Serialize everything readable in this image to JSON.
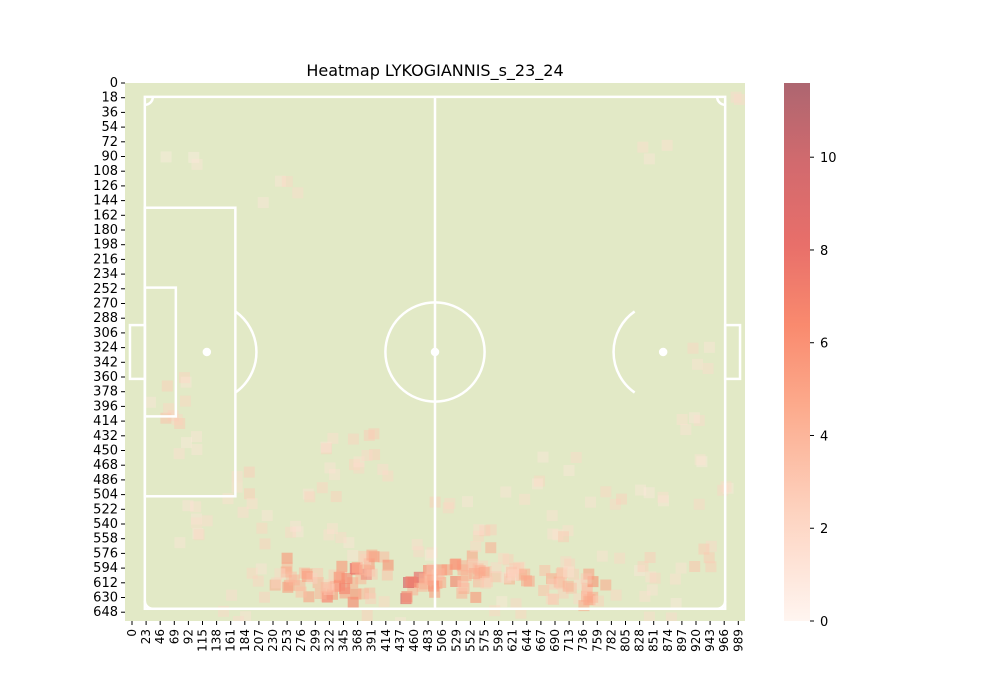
{
  "chart_data": {
    "type": "heatmap",
    "title": "Heatmap LYKOGIANNIS_s_23_24",
    "xlabel": "",
    "ylabel": "",
    "xlim": [
      0,
      1000
    ],
    "ylim": [
      0,
      660
    ],
    "x_ticks": [
      "0",
      "23",
      "46",
      "69",
      "92",
      "115",
      "138",
      "161",
      "184",
      "207",
      "230",
      "253",
      "276",
      "299",
      "322",
      "345",
      "368",
      "391",
      "414",
      "437",
      "460",
      "483",
      "506",
      "529",
      "552",
      "575",
      "598",
      "621",
      "644",
      "667",
      "690",
      "713",
      "736",
      "759",
      "782",
      "805",
      "828",
      "851",
      "874",
      "897",
      "920",
      "943",
      "966",
      "989"
    ],
    "y_ticks": [
      "0",
      "18",
      "36",
      "54",
      "72",
      "90",
      "108",
      "126",
      "144",
      "162",
      "180",
      "198",
      "216",
      "234",
      "252",
      "270",
      "288",
      "306",
      "324",
      "342",
      "360",
      "378",
      "396",
      "414",
      "432",
      "450",
      "468",
      "486",
      "504",
      "522",
      "540",
      "558",
      "576",
      "594",
      "612",
      "630",
      "648"
    ],
    "colorbar": {
      "min": 0,
      "max": 11.6,
      "ticks": [
        "0",
        "2",
        "4",
        "6",
        "8",
        "10"
      ],
      "colormap": "Reds"
    },
    "pitch": {
      "background": "#e2e9c6",
      "line_color": "#ffffff"
    },
    "hotspots": [
      {
        "x": 480,
        "y": 615,
        "v": 9.8
      },
      {
        "x": 340,
        "y": 620,
        "v": 7.5
      },
      {
        "x": 375,
        "y": 612,
        "v": 8.5
      },
      {
        "x": 410,
        "y": 598,
        "v": 6.5
      },
      {
        "x": 265,
        "y": 600,
        "v": 6.0
      },
      {
        "x": 300,
        "y": 615,
        "v": 6.5
      },
      {
        "x": 230,
        "y": 615,
        "v": 3.5
      },
      {
        "x": 520,
        "y": 608,
        "v": 7.2
      },
      {
        "x": 555,
        "y": 595,
        "v": 6.2
      },
      {
        "x": 575,
        "y": 612,
        "v": 6.8
      },
      {
        "x": 610,
        "y": 590,
        "v": 5.0
      },
      {
        "x": 650,
        "y": 610,
        "v": 5.2
      },
      {
        "x": 690,
        "y": 618,
        "v": 5.6
      },
      {
        "x": 720,
        "y": 622,
        "v": 5.0
      },
      {
        "x": 770,
        "y": 622,
        "v": 6.4
      },
      {
        "x": 740,
        "y": 600,
        "v": 3.8
      },
      {
        "x": 820,
        "y": 590,
        "v": 3.0
      },
      {
        "x": 870,
        "y": 615,
        "v": 2.5
      },
      {
        "x": 930,
        "y": 580,
        "v": 3.4
      },
      {
        "x": 350,
        "y": 560,
        "v": 3.2
      },
      {
        "x": 590,
        "y": 565,
        "v": 3.6
      },
      {
        "x": 690,
        "y": 548,
        "v": 3.2
      },
      {
        "x": 480,
        "y": 560,
        "v": 2.4
      },
      {
        "x": 250,
        "y": 560,
        "v": 2.6
      },
      {
        "x": 320,
        "y": 495,
        "v": 3.0
      },
      {
        "x": 400,
        "y": 480,
        "v": 3.2
      },
      {
        "x": 530,
        "y": 525,
        "v": 2.8
      },
      {
        "x": 640,
        "y": 505,
        "v": 2.6
      },
      {
        "x": 775,
        "y": 505,
        "v": 2.6
      },
      {
        "x": 320,
        "y": 455,
        "v": 2.8
      },
      {
        "x": 390,
        "y": 445,
        "v": 3.2
      },
      {
        "x": 90,
        "y": 400,
        "v": 3.6
      },
      {
        "x": 70,
        "y": 380,
        "v": 2.8
      },
      {
        "x": 100,
        "y": 450,
        "v": 2.2
      },
      {
        "x": 130,
        "y": 530,
        "v": 2.4
      },
      {
        "x": 90,
        "y": 555,
        "v": 2.2
      },
      {
        "x": 190,
        "y": 495,
        "v": 3.0
      },
      {
        "x": 220,
        "y": 530,
        "v": 2.4
      },
      {
        "x": 860,
        "y": 495,
        "v": 2.2
      },
      {
        "x": 950,
        "y": 500,
        "v": 2.2
      },
      {
        "x": 945,
        "y": 335,
        "v": 2.4
      },
      {
        "x": 900,
        "y": 400,
        "v": 2.0
      },
      {
        "x": 930,
        "y": 445,
        "v": 1.8
      },
      {
        "x": 700,
        "y": 470,
        "v": 2.0
      },
      {
        "x": 250,
        "y": 140,
        "v": 2.2
      },
      {
        "x": 850,
        "y": 75,
        "v": 1.6
      },
      {
        "x": 90,
        "y": 110,
        "v": 1.4
      },
      {
        "x": 1000,
        "y": 5,
        "v": 2.2
      },
      {
        "x": 180,
        "y": 645,
        "v": 2.8
      },
      {
        "x": 420,
        "y": 650,
        "v": 3.0
      },
      {
        "x": 620,
        "y": 648,
        "v": 2.4
      },
      {
        "x": 860,
        "y": 640,
        "v": 2.2
      }
    ]
  }
}
